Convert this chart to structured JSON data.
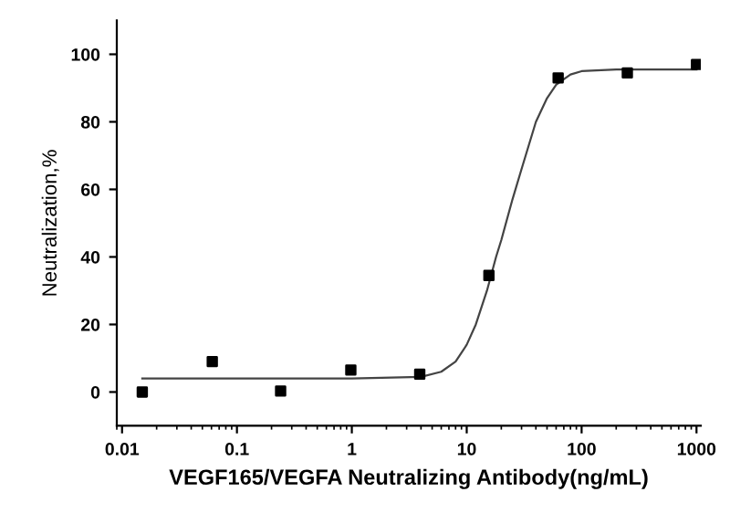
{
  "chart_data": {
    "type": "scatter",
    "xlabel": "VEGF165/VEGFA Neutralizing Antibody(ng/mL)",
    "ylabel": "Neutralization,%",
    "log": "x",
    "xlim": [
      0.009,
      1090
    ],
    "xticks": [
      0.01,
      0.1,
      1,
      10,
      100,
      1000
    ],
    "ylim": [
      -10,
      110
    ],
    "yticks": [
      0,
      20,
      40,
      60,
      80,
      100
    ],
    "grid": false,
    "series": [
      {
        "marker": "square",
        "color": "#000000",
        "x": [
          0.015,
          0.061,
          0.24,
          0.98,
          3.9,
          15.6,
          62.5,
          250,
          1000
        ],
        "values": [
          0,
          9,
          0.3,
          6.5,
          5.3,
          34.5,
          93,
          94.5,
          97
        ]
      },
      {
        "type": "line",
        "color": "#444444",
        "line_style": "solid",
        "x": [
          0.015,
          1,
          4,
          6,
          8,
          10,
          12,
          15,
          18,
          20,
          25,
          30,
          40,
          50,
          60,
          80,
          100,
          200,
          1000
        ],
        "values": [
          4,
          4,
          4.5,
          6,
          9,
          14,
          20,
          30,
          40,
          45,
          57,
          66,
          80,
          87,
          91,
          94,
          95,
          95.5,
          95.5
        ]
      }
    ]
  }
}
